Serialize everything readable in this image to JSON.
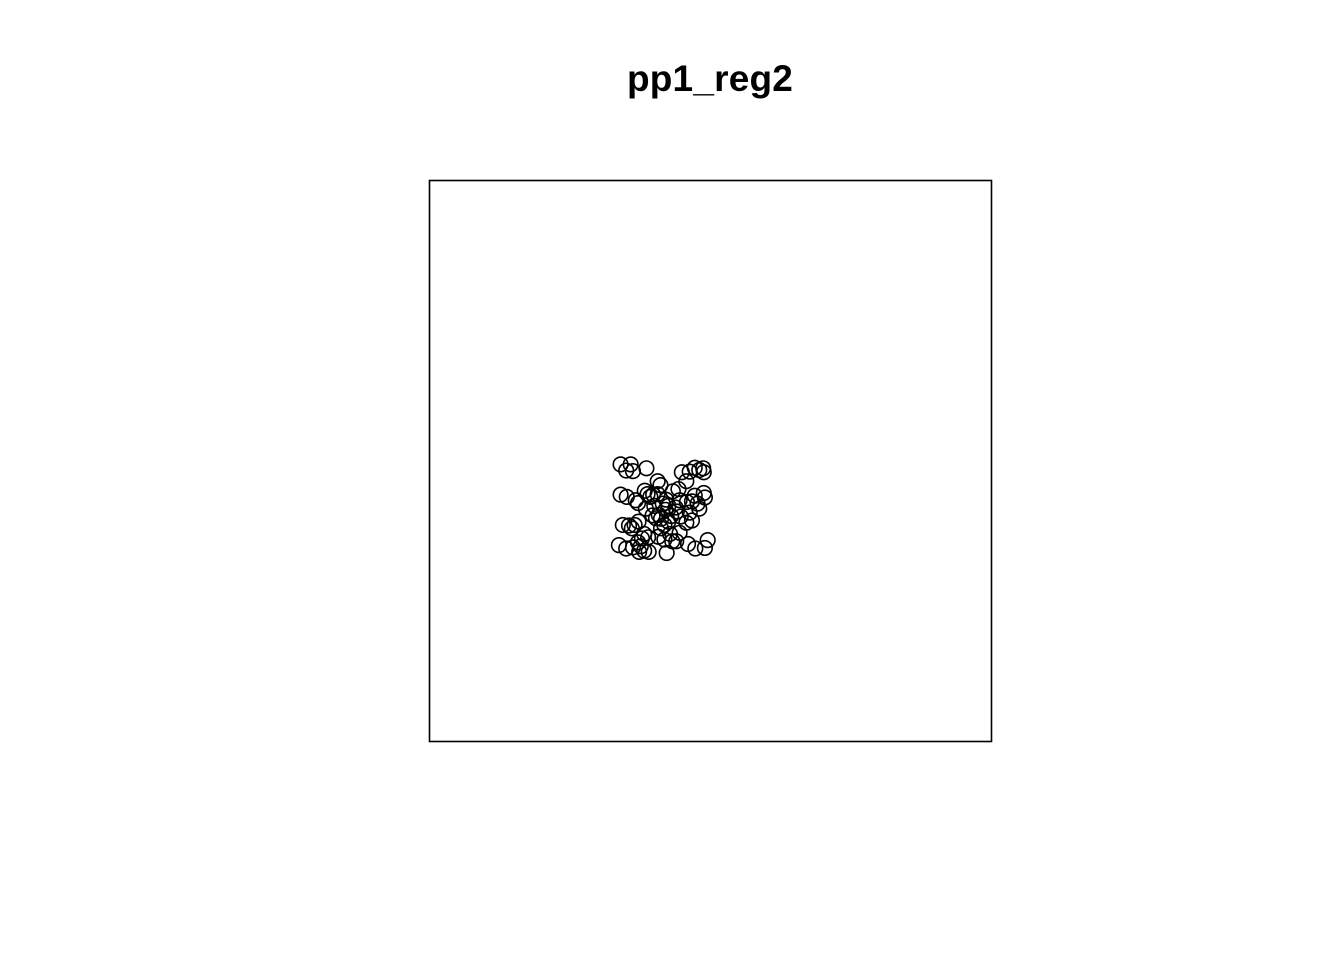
{
  "chart_data": {
    "type": "scatter",
    "title": "pp1_reg2",
    "xlabel": "",
    "ylabel": "",
    "xlim": [
      0,
      1
    ],
    "ylim": [
      0,
      1
    ],
    "axes_shown": false,
    "grid": false,
    "marker": "open-circle",
    "marker_color": "#000000",
    "frame_color": "#000000",
    "points": [
      [
        0.34,
        0.494
      ],
      [
        0.358,
        0.494
      ],
      [
        0.362,
        0.482
      ],
      [
        0.386,
        0.487
      ],
      [
        0.35,
        0.483
      ],
      [
        0.463,
        0.481
      ],
      [
        0.472,
        0.488
      ],
      [
        0.48,
        0.484
      ],
      [
        0.487,
        0.487
      ],
      [
        0.488,
        0.48
      ],
      [
        0.449,
        0.48
      ],
      [
        0.457,
        0.464
      ],
      [
        0.406,
        0.464
      ],
      [
        0.411,
        0.457
      ],
      [
        0.383,
        0.447
      ],
      [
        0.34,
        0.44
      ],
      [
        0.351,
        0.436
      ],
      [
        0.388,
        0.441
      ],
      [
        0.393,
        0.436
      ],
      [
        0.398,
        0.44
      ],
      [
        0.406,
        0.441
      ],
      [
        0.421,
        0.431
      ],
      [
        0.425,
        0.42
      ],
      [
        0.415,
        0.424
      ],
      [
        0.42,
        0.413
      ],
      [
        0.438,
        0.417
      ],
      [
        0.445,
        0.43
      ],
      [
        0.458,
        0.427
      ],
      [
        0.467,
        0.428
      ],
      [
        0.472,
        0.438
      ],
      [
        0.477,
        0.424
      ],
      [
        0.488,
        0.443
      ],
      [
        0.49,
        0.435
      ],
      [
        0.367,
        0.43
      ],
      [
        0.371,
        0.425
      ],
      [
        0.397,
        0.403
      ],
      [
        0.403,
        0.398
      ],
      [
        0.408,
        0.404
      ],
      [
        0.412,
        0.397
      ],
      [
        0.425,
        0.392
      ],
      [
        0.43,
        0.402
      ],
      [
        0.44,
        0.41
      ],
      [
        0.447,
        0.401
      ],
      [
        0.463,
        0.408
      ],
      [
        0.467,
        0.394
      ],
      [
        0.372,
        0.392
      ],
      [
        0.365,
        0.386
      ],
      [
        0.355,
        0.385
      ],
      [
        0.36,
        0.38
      ],
      [
        0.344,
        0.386
      ],
      [
        0.382,
        0.37
      ],
      [
        0.389,
        0.364
      ],
      [
        0.378,
        0.362
      ],
      [
        0.337,
        0.35
      ],
      [
        0.35,
        0.344
      ],
      [
        0.362,
        0.346
      ],
      [
        0.373,
        0.338
      ],
      [
        0.382,
        0.34
      ],
      [
        0.39,
        0.338
      ],
      [
        0.407,
        0.365
      ],
      [
        0.418,
        0.36
      ],
      [
        0.428,
        0.37
      ],
      [
        0.432,
        0.357
      ],
      [
        0.445,
        0.372
      ],
      [
        0.439,
        0.357
      ],
      [
        0.422,
        0.336
      ],
      [
        0.46,
        0.352
      ],
      [
        0.473,
        0.344
      ],
      [
        0.49,
        0.345
      ],
      [
        0.495,
        0.359
      ],
      [
        0.371,
        0.355
      ],
      [
        0.376,
        0.348
      ],
      [
        0.412,
        0.38
      ],
      [
        0.418,
        0.386
      ],
      [
        0.4,
        0.42
      ],
      [
        0.433,
        0.446
      ],
      [
        0.443,
        0.45
      ],
      [
        0.48,
        0.415
      ],
      [
        0.457,
        0.39
      ],
      [
        0.385,
        0.415
      ]
    ]
  }
}
